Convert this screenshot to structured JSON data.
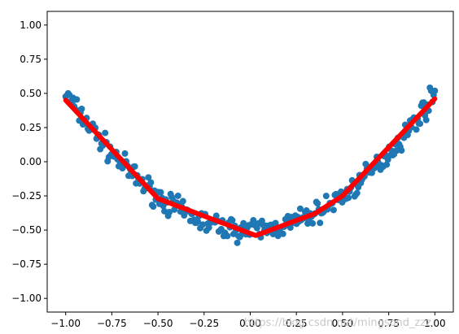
{
  "chart_data": {
    "type": "scatter",
    "title": "",
    "xlabel": "",
    "ylabel": "",
    "xlim": [
      -1.1,
      1.1
    ],
    "ylim": [
      -1.1,
      1.1
    ],
    "x_ticks": [
      -1.0,
      -0.75,
      -0.5,
      -0.25,
      0.0,
      0.25,
      0.5,
      0.75,
      1.0
    ],
    "x_tick_labels": [
      "−1.00",
      "−0.75",
      "−0.50",
      "−0.25",
      "0.00",
      "0.25",
      "0.50",
      "0.75",
      "1.00"
    ],
    "y_ticks": [
      1.0,
      0.75,
      0.5,
      0.25,
      0.0,
      -0.25,
      -0.5,
      -0.75,
      -1.0
    ],
    "y_tick_labels": [
      "1.00",
      "0.75",
      "0.50",
      "0.25",
      "0.00",
      "−0.25",
      "−0.50",
      "−0.75",
      "−1.00"
    ],
    "grid": false,
    "legend": "none",
    "scatter_color": "#1f77b4",
    "line_color": "#ff0000",
    "scatter_model": {
      "x_range": [
        -1.0,
        1.0
      ],
      "point_count": 300,
      "trend": "y = x^2 - 0.5",
      "noise_amplitude": 0.05
    },
    "fit_line": {
      "x": [
        -1.0,
        -0.5,
        0.03,
        0.35,
        0.5,
        1.0
      ],
      "y": [
        0.45,
        -0.27,
        -0.54,
        -0.38,
        -0.25,
        0.46
      ]
    }
  },
  "watermark": "https://blog.csdn.net/mingsond_zzz"
}
